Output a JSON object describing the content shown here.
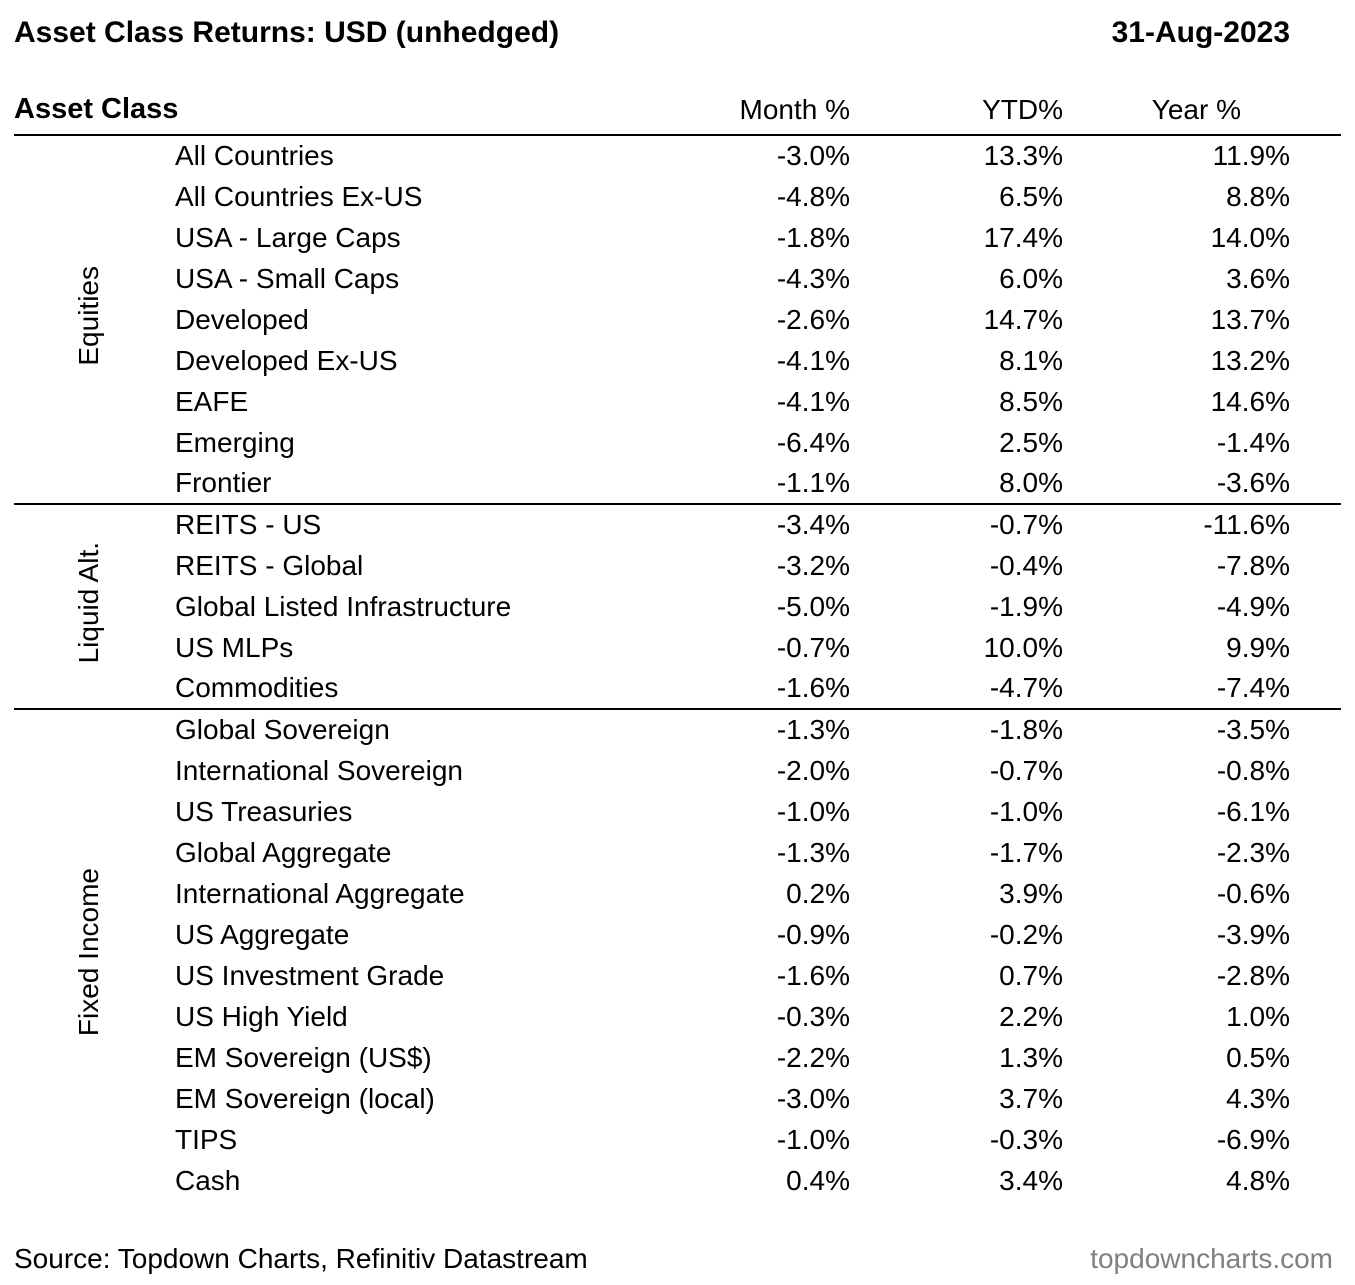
{
  "header": {
    "title": "Asset Class Returns: USD (unhedged)",
    "date": "31-Aug-2023"
  },
  "table": {
    "columns": [
      "Asset Class",
      "Month %",
      "YTD%",
      "Year %"
    ],
    "groups": [
      {
        "label": "Equities",
        "rows": [
          {
            "name": "All Countries",
            "month": "-3.0%",
            "ytd": "13.3%",
            "year": "11.9%"
          },
          {
            "name": "All Countries Ex-US",
            "month": "-4.8%",
            "ytd": "6.5%",
            "year": "8.8%"
          },
          {
            "name": "USA - Large Caps",
            "month": "-1.8%",
            "ytd": "17.4%",
            "year": "14.0%"
          },
          {
            "name": "USA - Small Caps",
            "month": "-4.3%",
            "ytd": "6.0%",
            "year": "3.6%"
          },
          {
            "name": "Developed",
            "month": "-2.6%",
            "ytd": "14.7%",
            "year": "13.7%"
          },
          {
            "name": "Developed Ex-US",
            "month": "-4.1%",
            "ytd": "8.1%",
            "year": "13.2%"
          },
          {
            "name": "EAFE",
            "month": "-4.1%",
            "ytd": "8.5%",
            "year": "14.6%"
          },
          {
            "name": "Emerging",
            "month": "-6.4%",
            "ytd": "2.5%",
            "year": "-1.4%"
          },
          {
            "name": "Frontier",
            "month": "-1.1%",
            "ytd": "8.0%",
            "year": "-3.6%"
          }
        ]
      },
      {
        "label": "Liquid Alt.",
        "rows": [
          {
            "name": "REITS - US",
            "month": "-3.4%",
            "ytd": "-0.7%",
            "year": "-11.6%"
          },
          {
            "name": "REITS - Global",
            "month": "-3.2%",
            "ytd": "-0.4%",
            "year": "-7.8%"
          },
          {
            "name": "Global Listed Infrastructure",
            "month": "-5.0%",
            "ytd": "-1.9%",
            "year": "-4.9%"
          },
          {
            "name": "US MLPs",
            "month": "-0.7%",
            "ytd": "10.0%",
            "year": "9.9%"
          },
          {
            "name": "Commodities",
            "month": "-1.6%",
            "ytd": "-4.7%",
            "year": "-7.4%"
          }
        ]
      },
      {
        "label": "Fixed Income",
        "rows": [
          {
            "name": "Global Sovereign",
            "month": "-1.3%",
            "ytd": "-1.8%",
            "year": "-3.5%"
          },
          {
            "name": "International Sovereign",
            "month": "-2.0%",
            "ytd": "-0.7%",
            "year": "-0.8%"
          },
          {
            "name": "US Treasuries",
            "month": "-1.0%",
            "ytd": "-1.0%",
            "year": "-6.1%"
          },
          {
            "name": "Global Aggregate",
            "month": "-1.3%",
            "ytd": "-1.7%",
            "year": "-2.3%"
          },
          {
            "name": "International Aggregate",
            "month": "0.2%",
            "ytd": "3.9%",
            "year": "-0.6%"
          },
          {
            "name": "US Aggregate",
            "month": "-0.9%",
            "ytd": "-0.2%",
            "year": "-3.9%"
          },
          {
            "name": "US Investment Grade",
            "month": "-1.6%",
            "ytd": "0.7%",
            "year": "-2.8%"
          },
          {
            "name": "US High Yield",
            "month": "-0.3%",
            "ytd": "2.2%",
            "year": "1.0%"
          },
          {
            "name": "EM Sovereign (US$)",
            "month": "-2.2%",
            "ytd": "1.3%",
            "year": "0.5%"
          },
          {
            "name": "EM Sovereign (local)",
            "month": "-3.0%",
            "ytd": "3.7%",
            "year": "4.3%"
          },
          {
            "name": "TIPS",
            "month": "-1.0%",
            "ytd": "-0.3%",
            "year": "-6.9%"
          },
          {
            "name": "Cash",
            "month": "0.4%",
            "ytd": "3.4%",
            "year": "4.8%"
          }
        ]
      }
    ]
  },
  "footer": {
    "source": "Source: Topdown Charts, Refinitiv Datastream",
    "watermark": "topdowncharts.com"
  },
  "colors": {
    "text": "#000000",
    "watermark": "#808080",
    "rule": "#000000",
    "background": "#ffffff"
  },
  "chart_data": {
    "type": "table",
    "title": "Asset Class Returns: USD (unhedged)",
    "as_of": "31-Aug-2023",
    "columns": [
      "Asset Class",
      "Month %",
      "YTD%",
      "Year %"
    ],
    "unit": "%",
    "groups": [
      {
        "group": "Equities",
        "rows": [
          [
            "All Countries",
            -3.0,
            13.3,
            11.9
          ],
          [
            "All Countries Ex-US",
            -4.8,
            6.5,
            8.8
          ],
          [
            "USA - Large Caps",
            -1.8,
            17.4,
            14.0
          ],
          [
            "USA - Small Caps",
            -4.3,
            6.0,
            3.6
          ],
          [
            "Developed",
            -2.6,
            14.7,
            13.7
          ],
          [
            "Developed Ex-US",
            -4.1,
            8.1,
            13.2
          ],
          [
            "EAFE",
            -4.1,
            8.5,
            14.6
          ],
          [
            "Emerging",
            -6.4,
            2.5,
            -1.4
          ],
          [
            "Frontier",
            -1.1,
            8.0,
            -3.6
          ]
        ]
      },
      {
        "group": "Liquid Alt.",
        "rows": [
          [
            "REITS - US",
            -3.4,
            -0.7,
            -11.6
          ],
          [
            "REITS - Global",
            -3.2,
            -0.4,
            -7.8
          ],
          [
            "Global Listed Infrastructure",
            -5.0,
            -1.9,
            -4.9
          ],
          [
            "US MLPs",
            -0.7,
            10.0,
            9.9
          ],
          [
            "Commodities",
            -1.6,
            -4.7,
            -7.4
          ]
        ]
      },
      {
        "group": "Fixed Income",
        "rows": [
          [
            "Global Sovereign",
            -1.3,
            -1.8,
            -3.5
          ],
          [
            "International Sovereign",
            -2.0,
            -0.7,
            -0.8
          ],
          [
            "US Treasuries",
            -1.0,
            -1.0,
            -6.1
          ],
          [
            "Global Aggregate",
            -1.3,
            -1.7,
            -2.3
          ],
          [
            "International Aggregate",
            0.2,
            3.9,
            -0.6
          ],
          [
            "US Aggregate",
            -0.9,
            -0.2,
            -3.9
          ],
          [
            "US Investment Grade",
            -1.6,
            0.7,
            -2.8
          ],
          [
            "US High Yield",
            -0.3,
            2.2,
            1.0
          ],
          [
            "EM Sovereign (US$)",
            -2.2,
            1.3,
            0.5
          ],
          [
            "EM Sovereign (local)",
            -3.0,
            3.7,
            4.3
          ],
          [
            "TIPS",
            -1.0,
            -0.3,
            -6.9
          ],
          [
            "Cash",
            0.4,
            3.4,
            4.8
          ]
        ]
      }
    ]
  }
}
